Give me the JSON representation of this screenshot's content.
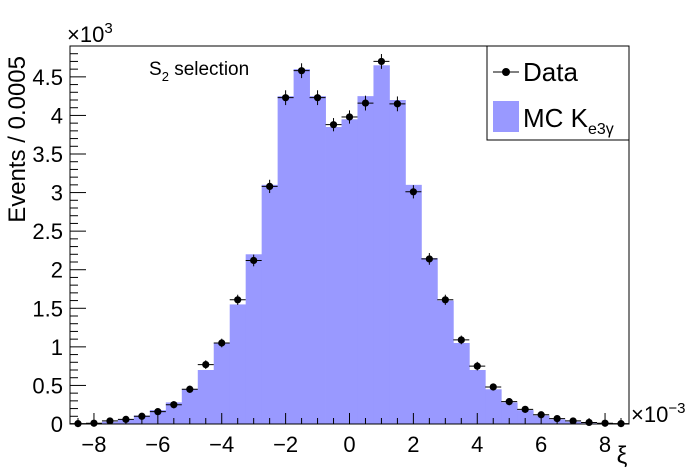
{
  "chart_data": {
    "type": "bar",
    "subtype": "histogram-with-data-points",
    "ylabel": "Events / 0.0005",
    "xlabel": "ξ",
    "y_exponent_label": "×10",
    "y_exponent": "3",
    "x_exponent_label": "×10",
    "x_exponent": "−3",
    "annotation": {
      "main": "S",
      "sub": "2",
      "rest": " selection"
    },
    "xlim": [
      -8.75,
      8.75
    ],
    "ylim": [
      0,
      4.9
    ],
    "x_ticks": [
      -8,
      -6,
      -4,
      -2,
      0,
      2,
      4,
      6,
      8
    ],
    "x_tick_labels": [
      "−8",
      "−6",
      "−4",
      "−2",
      "0",
      "2",
      "4",
      "6",
      "8"
    ],
    "y_ticks": [
      0,
      0.5,
      1,
      1.5,
      2,
      2.5,
      3,
      3.5,
      4,
      4.5
    ],
    "y_tick_labels": [
      "0",
      "0.5",
      "1",
      "1.5",
      "2",
      "2.5",
      "3",
      "3.5",
      "4",
      "4.5"
    ],
    "bin_width": 0.5,
    "bin_centers": [
      -8.5,
      -8.0,
      -7.5,
      -7.0,
      -6.5,
      -6.0,
      -5.5,
      -5.0,
      -4.5,
      -4.0,
      -3.5,
      -3.0,
      -2.5,
      -2.0,
      -1.5,
      -1.0,
      -0.5,
      0.0,
      0.5,
      1.0,
      1.5,
      2.0,
      2.5,
      3.0,
      3.5,
      4.0,
      4.5,
      5.0,
      5.5,
      6.0,
      6.5,
      7.0,
      7.5,
      8.0,
      8.5
    ],
    "series": [
      {
        "name": "MC K",
        "name_sub": "e3γ",
        "kind": "histogram",
        "color": "#9999ff",
        "values": [
          0.005,
          0.01,
          0.03,
          0.06,
          0.11,
          0.18,
          0.28,
          0.45,
          0.7,
          1.05,
          1.55,
          2.2,
          3.1,
          4.25,
          4.6,
          4.25,
          3.85,
          3.95,
          4.25,
          4.65,
          4.2,
          3.1,
          2.15,
          1.6,
          1.05,
          0.7,
          0.45,
          0.28,
          0.18,
          0.11,
          0.06,
          0.03,
          0.01,
          0.005,
          0.0
        ]
      },
      {
        "name": "Data",
        "kind": "points-with-errors",
        "color": "#000000",
        "values": [
          0.005,
          0.01,
          0.04,
          0.06,
          0.1,
          0.16,
          0.25,
          0.45,
          0.77,
          1.05,
          1.61,
          2.12,
          3.08,
          4.23,
          4.58,
          4.23,
          3.88,
          3.98,
          4.16,
          4.7,
          4.15,
          3.01,
          2.14,
          1.61,
          1.09,
          0.75,
          0.48,
          0.29,
          0.19,
          0.12,
          0.07,
          0.04,
          0.02,
          0.01,
          0.005
        ],
        "errors": [
          0.0,
          0.01,
          0.01,
          0.01,
          0.01,
          0.01,
          0.02,
          0.02,
          0.03,
          0.03,
          0.04,
          0.05,
          0.06,
          0.07,
          0.07,
          0.07,
          0.06,
          0.06,
          0.07,
          0.07,
          0.07,
          0.06,
          0.05,
          0.04,
          0.03,
          0.03,
          0.02,
          0.02,
          0.01,
          0.01,
          0.01,
          0.01,
          0.01,
          0.0,
          0.0
        ]
      }
    ],
    "legend_position": "top-right"
  }
}
